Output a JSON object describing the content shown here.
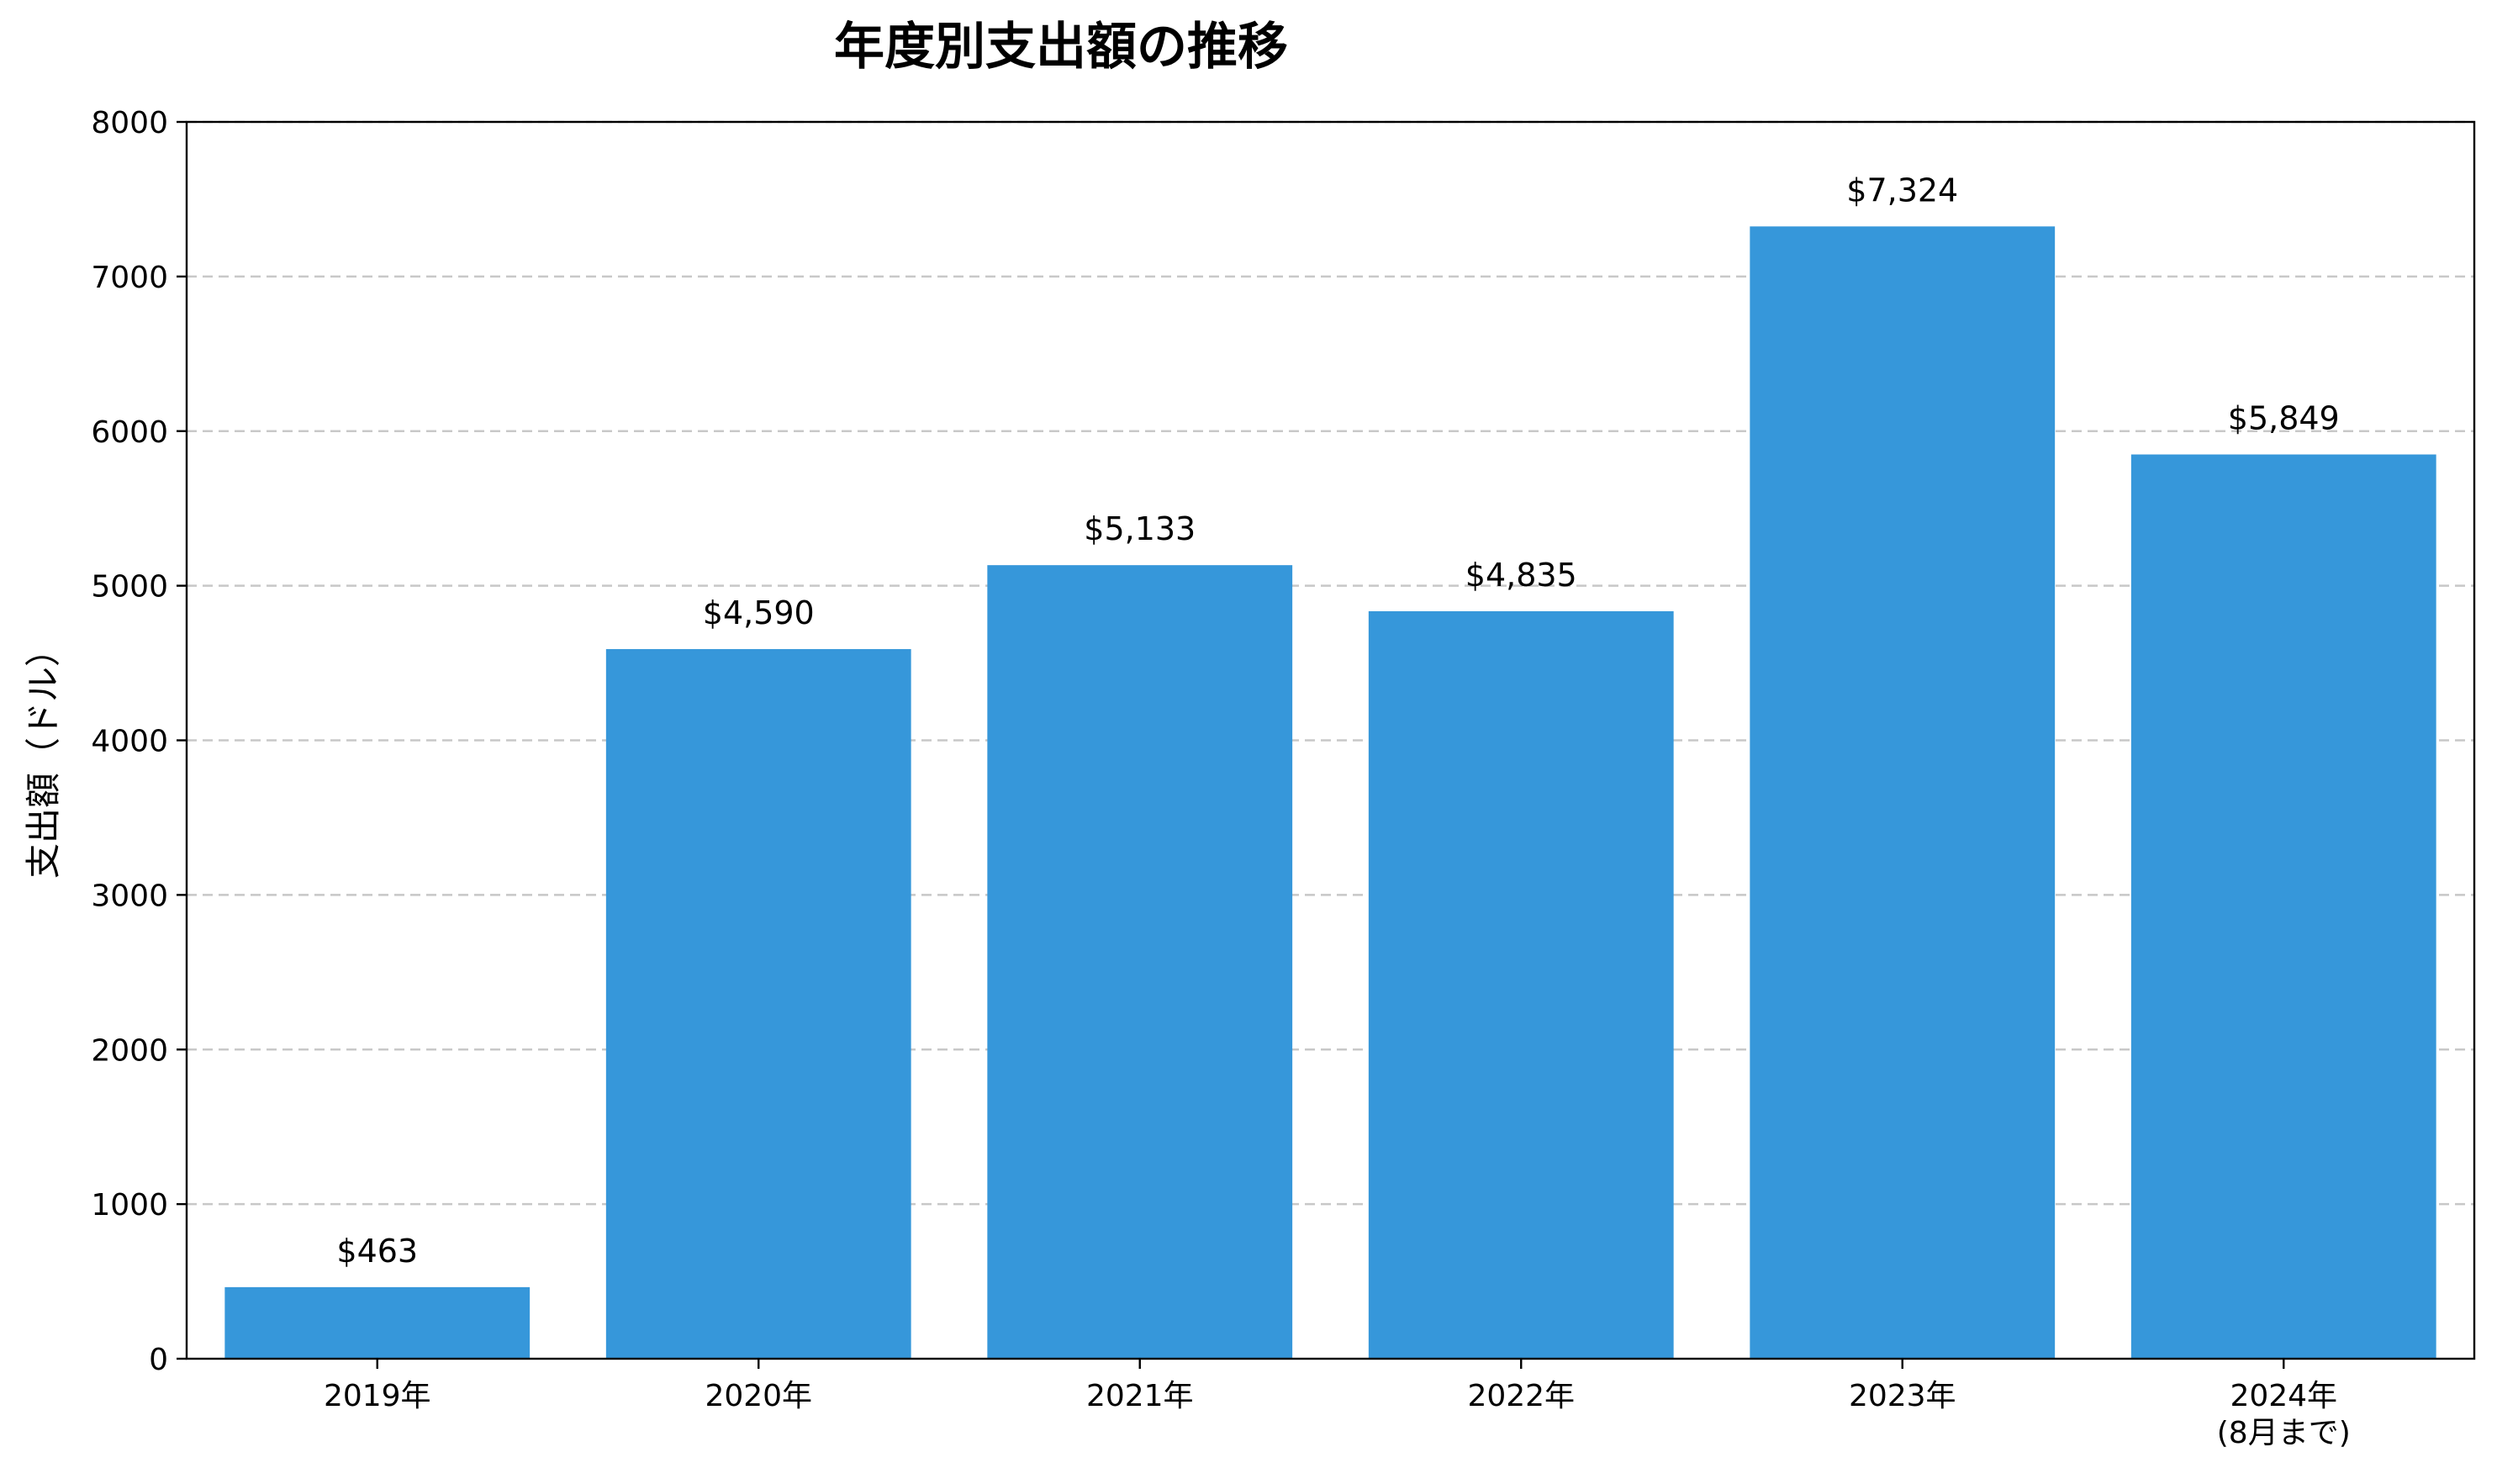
{
  "chart_data": {
    "type": "bar",
    "title": "年度別支出額の推移",
    "xlabel": "",
    "ylabel": "支出額（ドル）",
    "categories": [
      "2019年",
      "2020年",
      "2021年",
      "2022年",
      "2023年",
      "2024年\n(8月まで)"
    ],
    "values": [
      463,
      4590,
      5133,
      4835,
      7324,
      5849
    ],
    "data_labels": [
      "$463",
      "$4,590",
      "$5,133",
      "$4,835",
      "$7,324",
      "$5,849"
    ],
    "ylim": [
      0,
      8000
    ],
    "yticks": [
      0,
      1000,
      2000,
      3000,
      4000,
      5000,
      6000,
      7000,
      8000
    ],
    "grid": "y",
    "bar_color": "#3697da",
    "grid_color": "#c8c8c8"
  }
}
